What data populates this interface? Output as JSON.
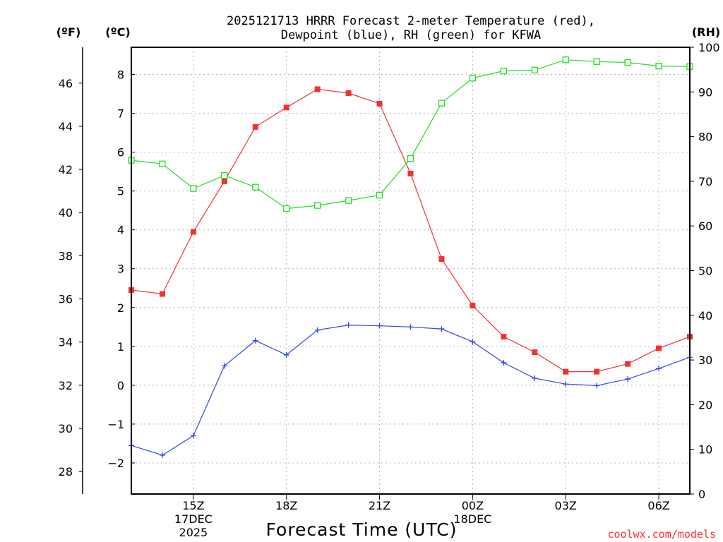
{
  "chart_data": {
    "type": "line",
    "title_line1": "2025121713 HRRR Forecast 2-meter Temperature (red),",
    "title_line2": "Dewpoint (blue), RH (green) for KFWA",
    "xlabel": "Forecast Time (UTC)",
    "credit": "coolwx.com/models",
    "x_hours": [
      13,
      14,
      15,
      16,
      17,
      18,
      19,
      20,
      21,
      22,
      23,
      24,
      25,
      26,
      27,
      28,
      29,
      30,
      31
    ],
    "x_range": [
      13,
      31
    ],
    "x_ticks": [
      {
        "hour": 15,
        "label": "15Z",
        "sub1": "17DEC",
        "sub2": "2025"
      },
      {
        "hour": 18,
        "label": "18Z",
        "sub1": "",
        "sub2": ""
      },
      {
        "hour": 21,
        "label": "21Z",
        "sub1": "",
        "sub2": ""
      },
      {
        "hour": 24,
        "label": "00Z",
        "sub1": "18DEC",
        "sub2": ""
      },
      {
        "hour": 27,
        "label": "03Z",
        "sub1": "",
        "sub2": ""
      },
      {
        "hour": 30,
        "label": "06Z",
        "sub1": "",
        "sub2": ""
      }
    ],
    "axes": {
      "celsius": {
        "unit_label": "(ºC)",
        "range": [
          -2.8,
          8.7
        ],
        "ticks": [
          -2,
          -1,
          0,
          1,
          2,
          3,
          4,
          5,
          6,
          7,
          8
        ],
        "tick_labels": [
          "−2",
          "−1",
          "0",
          "1",
          "2",
          "3",
          "4",
          "5",
          "6",
          "7",
          "8"
        ]
      },
      "fahrenheit": {
        "unit_label": "(ºF)",
        "ticks": [
          28,
          30,
          32,
          34,
          36,
          38,
          40,
          42,
          44,
          46
        ],
        "tick_labels": [
          "28",
          "30",
          "32",
          "34",
          "36",
          "38",
          "40",
          "42",
          "44",
          "46"
        ]
      },
      "rh": {
        "unit_label": "(RH)",
        "range": [
          0,
          100
        ],
        "ticks": [
          0,
          10,
          20,
          30,
          40,
          50,
          60,
          70,
          80,
          90,
          100
        ],
        "tick_labels": [
          "0",
          "10",
          "20",
          "30",
          "40",
          "50",
          "60",
          "70",
          "80",
          "90",
          "100"
        ]
      }
    },
    "series": [
      {
        "name": "2-meter Temperature",
        "axis": "celsius",
        "color": "#ee3333",
        "marker": "filled-square",
        "values": [
          2.45,
          2.35,
          3.95,
          5.25,
          6.65,
          7.15,
          7.62,
          7.52,
          7.25,
          5.45,
          3.25,
          2.05,
          1.25,
          0.85,
          0.35,
          0.35,
          0.55,
          0.95,
          1.25
        ]
      },
      {
        "name": "Dewpoint",
        "axis": "celsius",
        "color": "#3344ee",
        "marker": "plus",
        "values": [
          -1.55,
          -1.8,
          -1.3,
          0.5,
          1.15,
          0.78,
          1.42,
          1.55,
          1.53,
          1.5,
          1.45,
          1.12,
          0.58,
          0.18,
          0.03,
          -0.01,
          0.16,
          0.43,
          0.72
        ]
      },
      {
        "name": "RH",
        "axis": "rh",
        "color": "#22dd22",
        "marker": "open-square",
        "values": [
          74.7,
          73.9,
          68.4,
          71.3,
          68.7,
          63.9,
          64.6,
          65.7,
          66.9,
          75.1,
          87.5,
          93.1,
          94.7,
          94.9,
          97.2,
          96.8,
          96.6,
          95.8,
          95.7
        ]
      }
    ]
  }
}
